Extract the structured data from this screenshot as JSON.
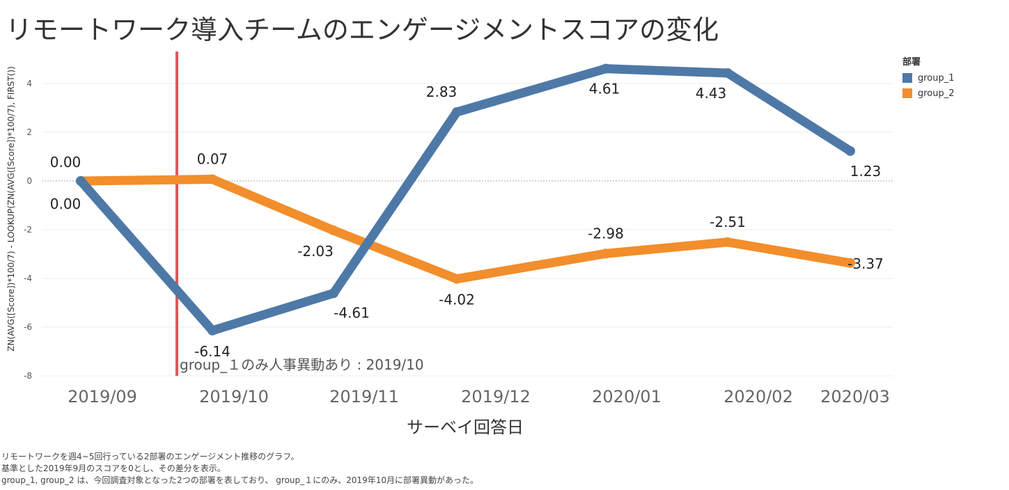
{
  "title": "リモートワーク導入チームのエンゲージメントスコアの変化",
  "legend": {
    "title": "部署",
    "items": [
      {
        "label": "group_1",
        "color": "#4e79a7"
      },
      {
        "label": "group_2",
        "color": "#f28e2b"
      }
    ]
  },
  "annotation": "group_１のみ人事異動あり : 2019/10",
  "footnote": [
    "リモートワークを週4~5回行っている2部署のエンゲージメント推移のグラフ。",
    "基準とした2019年9月のスコアを0とし、その差分を表示。",
    "group_1, group_2 は、今回調査対象となった2つの部署を表しており、 group_１にのみ、2019年10月に部署異動があった。"
  ],
  "chart_data": {
    "type": "line",
    "title": "リモートワーク導入チームのエンゲージメントスコアの変化",
    "xlabel": "サーベイ回答日",
    "ylabel": "ZN(AVG([Score])*100/7) - LOOKUP(ZN(AVG([Score])*100/7), FIRST())",
    "categories": [
      "2019/09",
      "2019/10",
      "2019/11",
      "2019/12",
      "2020/01",
      "2020/02",
      "2020/03"
    ],
    "ylim": [
      -8.2,
      5.5
    ],
    "yticks": [
      4,
      2,
      0,
      -2,
      -4,
      -6,
      -8
    ],
    "series": [
      {
        "name": "group_1",
        "color": "#4e79a7",
        "values": [
          0.0,
          -6.14,
          -4.61,
          2.83,
          4.61,
          4.43,
          1.23
        ],
        "labels": [
          "0.00",
          "-6.14",
          "-4.61",
          "2.83",
          "4.61",
          "4.43",
          "1.23"
        ]
      },
      {
        "name": "group_2",
        "color": "#f28e2b",
        "values": [
          0.0,
          0.07,
          -2.03,
          -4.02,
          -2.98,
          -2.51,
          -3.37
        ],
        "labels": [
          "0.00",
          "0.07",
          "-2.03",
          "-4.02",
          "-2.98",
          "-2.51",
          "-3.37"
        ]
      }
    ],
    "reference_line": {
      "category_between": [
        "2019/09",
        "2019/10"
      ],
      "color": "#e15759"
    },
    "grid": true,
    "legend_position": "top-right"
  }
}
